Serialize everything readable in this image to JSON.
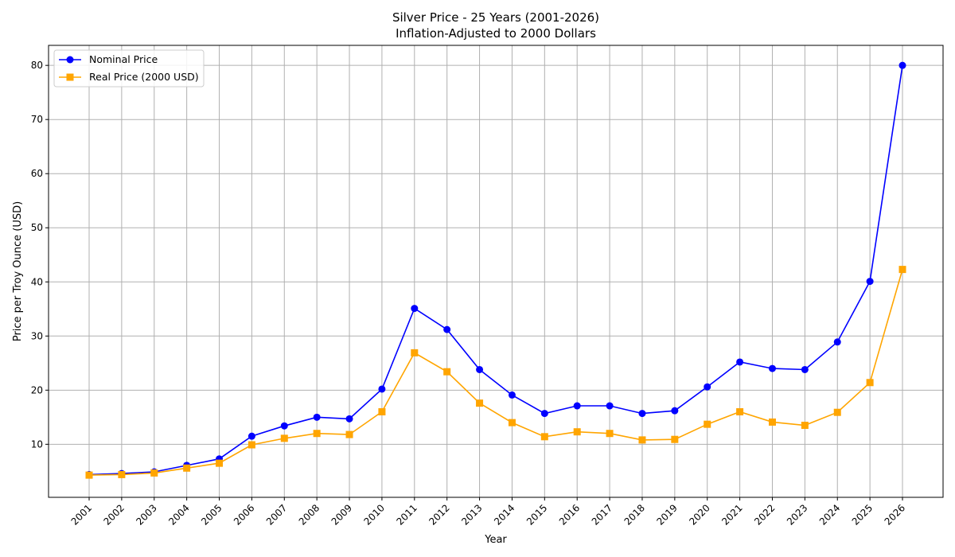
{
  "chart_data": {
    "type": "line",
    "title": "Silver Price - 25 Years (2001-2026)",
    "subtitle": "Inflation-Adjusted to 2000 Dollars",
    "xlabel": "Year",
    "ylabel": "Price per Troy Ounce (USD)",
    "x": [
      "2001",
      "2002",
      "2003",
      "2004",
      "2005",
      "2006",
      "2007",
      "2008",
      "2009",
      "2010",
      "2011",
      "2012",
      "2013",
      "2014",
      "2015",
      "2016",
      "2017",
      "2018",
      "2019",
      "2020",
      "2021",
      "2022",
      "2023",
      "2024",
      "2025",
      "2026"
    ],
    "ylim": [
      0.2,
      83.7
    ],
    "yticks": [
      10,
      20,
      30,
      40,
      50,
      60,
      70,
      80
    ],
    "grid": true,
    "legend_position": "top-left",
    "series": [
      {
        "name": "Nominal Price",
        "color": "#0000ff",
        "marker": "circle",
        "values": [
          4.4,
          4.6,
          4.9,
          6.1,
          7.3,
          11.5,
          13.4,
          15.0,
          14.7,
          20.2,
          35.1,
          31.2,
          23.8,
          19.1,
          15.7,
          17.1,
          17.1,
          15.7,
          16.2,
          20.6,
          25.2,
          24.0,
          23.8,
          28.9,
          40.1,
          80.0
        ]
      },
      {
        "name": "Real Price (2000 USD)",
        "color": "#ffa500",
        "marker": "square",
        "values": [
          4.3,
          4.4,
          4.7,
          5.6,
          6.5,
          9.9,
          11.1,
          12.0,
          11.8,
          16.0,
          26.9,
          23.4,
          17.6,
          14.0,
          11.4,
          12.3,
          12.0,
          10.8,
          10.9,
          13.7,
          16.0,
          14.1,
          13.5,
          15.9,
          21.4,
          42.3
        ]
      }
    ]
  }
}
